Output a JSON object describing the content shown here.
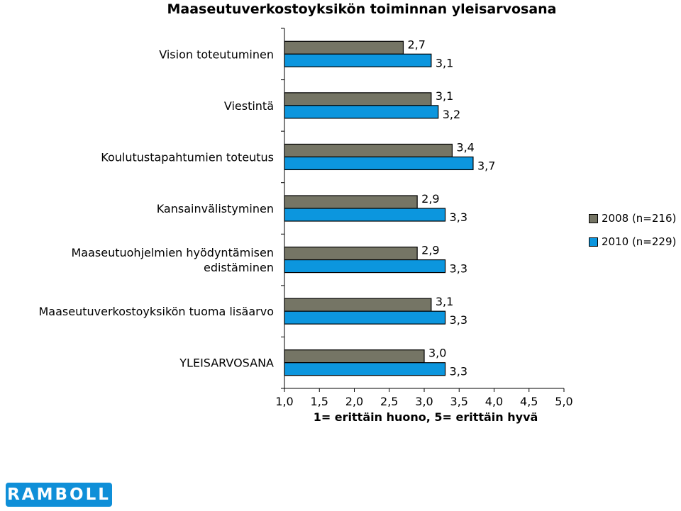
{
  "chart_data": {
    "type": "bar",
    "orientation": "horizontal",
    "title": "Maaseutuverkostoyksikön toiminnan yleisarvosana",
    "xlabel": "1= erittäin huono, 5= erittäin hyvä",
    "ylabel": "",
    "xlim": [
      1.0,
      5.0
    ],
    "tick_values": [
      1.0,
      1.5,
      2.0,
      2.5,
      3.0,
      3.5,
      4.0,
      4.5,
      5.0
    ],
    "tick_labels": [
      "1,0",
      "1,5",
      "2,0",
      "2,5",
      "3,0",
      "3,5",
      "4,0",
      "4,5",
      "5,0"
    ],
    "categories": [
      "Vision toteutuminen",
      "Viestintä",
      "Koulutustapahtumien toteutus",
      "Kansainvälistyminen",
      "Maaseutuohjelmien hyödyntämisen edistäminen",
      "Maaseutuverkostoyksikön tuoma lisäarvo",
      "YLEISARVOSANA"
    ],
    "category_label_lines": [
      [
        "Vision toteutuminen"
      ],
      [
        "Viestintä"
      ],
      [
        "Koulutustapahtumien toteutus"
      ],
      [
        "Kansainvälistyminen"
      ],
      [
        "Maaseutuohjelmien hyödyntämisen",
        "edistäminen"
      ],
      [
        "Maaseutuverkostoyksikön tuoma lisäarvo"
      ],
      [
        "YLEISARVOSANA"
      ]
    ],
    "series": [
      {
        "name": "2008 (n=216)",
        "color": "#757565",
        "values": [
          2.7,
          3.1,
          3.4,
          2.9,
          2.9,
          3.1,
          3.0
        ],
        "labels": [
          "2,7",
          "3,1",
          "3,4",
          "2,9",
          "2,9",
          "3,1",
          "3,0"
        ]
      },
      {
        "name": "2010 (n=229)",
        "color": "#0c96de",
        "values": [
          3.1,
          3.2,
          3.7,
          3.3,
          3.3,
          3.3,
          3.3
        ],
        "labels": [
          "3,1",
          "3,2",
          "3,7",
          "3,3",
          "3,3",
          "3,3",
          "3,3"
        ]
      }
    ],
    "grid": false,
    "legend_position": "right"
  },
  "logo": {
    "text": "RAMBOLL",
    "color": "#0f8fd8"
  }
}
